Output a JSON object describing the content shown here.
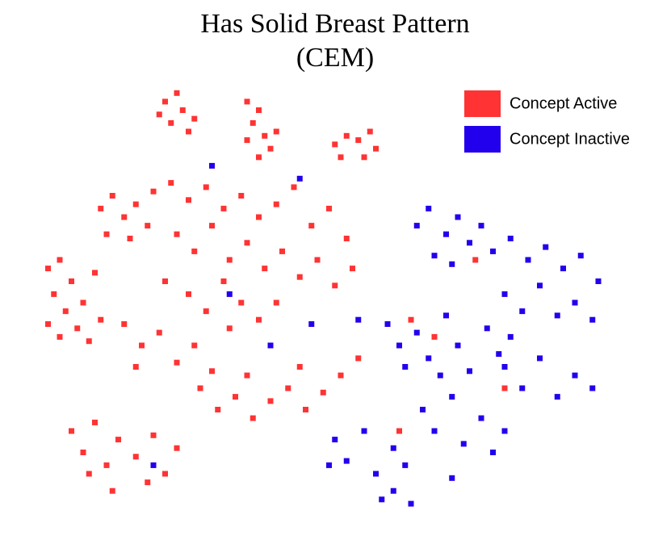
{
  "chart_data": {
    "type": "scatter",
    "title": "Has Solid Breast Pattern",
    "subtitle": "(CEM)",
    "xlim": [
      0,
      100
    ],
    "ylim": [
      0,
      100
    ],
    "legend": "top-right",
    "series": [
      {
        "name": "Concept Active",
        "color": "#ff3333",
        "x": [
          22,
          24,
          25,
          27,
          23,
          26,
          21,
          36,
          38,
          37,
          39,
          40,
          38,
          41,
          36,
          51,
          53,
          55,
          57,
          58,
          52,
          56,
          11,
          13,
          15,
          17,
          19,
          12,
          16,
          20,
          2,
          4,
          6,
          3,
          5,
          8,
          10,
          7,
          9,
          11,
          2,
          4,
          23,
          26,
          29,
          32,
          35,
          38,
          41,
          44,
          47,
          50,
          53,
          24,
          27,
          30,
          33,
          36,
          39,
          42,
          45,
          48,
          51,
          54,
          22,
          26,
          29,
          32,
          35,
          38,
          41,
          15,
          18,
          21,
          24,
          27,
          30,
          33,
          17,
          28,
          31,
          34,
          37,
          40,
          43,
          46,
          49,
          52,
          55,
          36,
          45,
          6,
          8,
          10,
          12,
          14,
          17,
          20,
          22,
          24,
          19,
          9,
          13,
          64,
          68,
          62,
          80,
          75
        ],
        "values": [
          97,
          99,
          95,
          93,
          92,
          90,
          94,
          97,
          95,
          92,
          89,
          86,
          84,
          90,
          88,
          87,
          89,
          88,
          90,
          86,
          84,
          84,
          72,
          75,
          70,
          73,
          68,
          66,
          65,
          76,
          58,
          60,
          55,
          52,
          48,
          50,
          57,
          44,
          41,
          46,
          45,
          42,
          78,
          74,
          77,
          72,
          75,
          70,
          73,
          77,
          68,
          72,
          65,
          66,
          62,
          68,
          60,
          64,
          58,
          62,
          56,
          60,
          54,
          58,
          55,
          52,
          48,
          55,
          50,
          46,
          50,
          45,
          40,
          43,
          36,
          40,
          34,
          44,
          35,
          30,
          25,
          28,
          23,
          27,
          30,
          25,
          29,
          33,
          37,
          33,
          35,
          20,
          15,
          22,
          12,
          18,
          14,
          19,
          10,
          16,
          8,
          10,
          6,
          46,
          42,
          20,
          30,
          60
        ]
      },
      {
        "name": "Concept Inactive",
        "color": "#2200ee",
        "x": [
          65,
          67,
          70,
          72,
          74,
          76,
          68,
          71,
          78,
          81,
          84,
          87,
          90,
          93,
          96,
          80,
          83,
          86,
          89,
          92,
          95,
          60,
          62,
          65,
          67,
          70,
          72,
          74,
          77,
          79,
          81,
          63,
          69,
          80,
          83,
          86,
          89,
          92,
          95,
          51,
          53,
          56,
          58,
          61,
          63,
          50,
          66,
          68,
          71,
          73,
          76,
          78,
          80,
          59,
          61,
          64,
          71,
          30,
          45,
          40,
          33,
          47,
          20,
          55
        ],
        "values": [
          68,
          72,
          66,
          70,
          64,
          68,
          61,
          59,
          62,
          65,
          60,
          63,
          58,
          61,
          55,
          52,
          48,
          54,
          47,
          50,
          46,
          45,
          40,
          43,
          37,
          47,
          40,
          34,
          44,
          38,
          42,
          35,
          33,
          35,
          30,
          37,
          28,
          33,
          30,
          18,
          13,
          20,
          10,
          16,
          12,
          12,
          25,
          20,
          28,
          17,
          23,
          15,
          20,
          4,
          6,
          3,
          9,
          82,
          79,
          40,
          52,
          45,
          12,
          46
        ]
      }
    ]
  }
}
